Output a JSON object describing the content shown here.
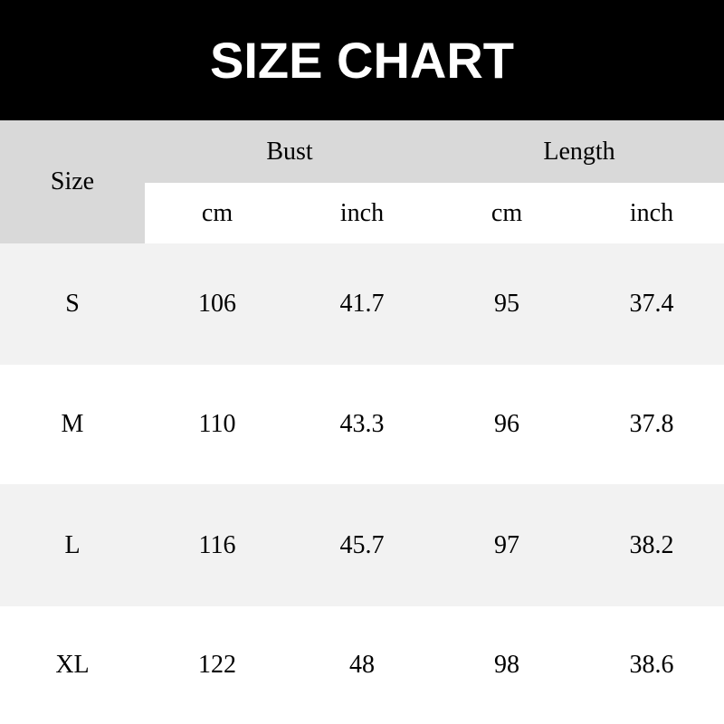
{
  "title": "SIZE CHART",
  "header": {
    "size": "Size",
    "groups": [
      "Bust",
      "Length"
    ],
    "units": [
      "cm",
      "inch",
      "cm",
      "inch"
    ]
  },
  "rows": [
    {
      "size": "S",
      "values": [
        "106",
        "41.7",
        "95",
        "37.4"
      ]
    },
    {
      "size": "M",
      "values": [
        "110",
        "43.3",
        "96",
        "37.8"
      ]
    },
    {
      "size": "L",
      "values": [
        "116",
        "45.7",
        "97",
        "38.2"
      ]
    },
    {
      "size": "XL",
      "values": [
        "122",
        "48",
        "98",
        "38.6"
      ]
    }
  ],
  "colors": {
    "banner": "#000000",
    "header_gray": "#d9d9d9",
    "row_stripe": "#f2f2f2"
  }
}
